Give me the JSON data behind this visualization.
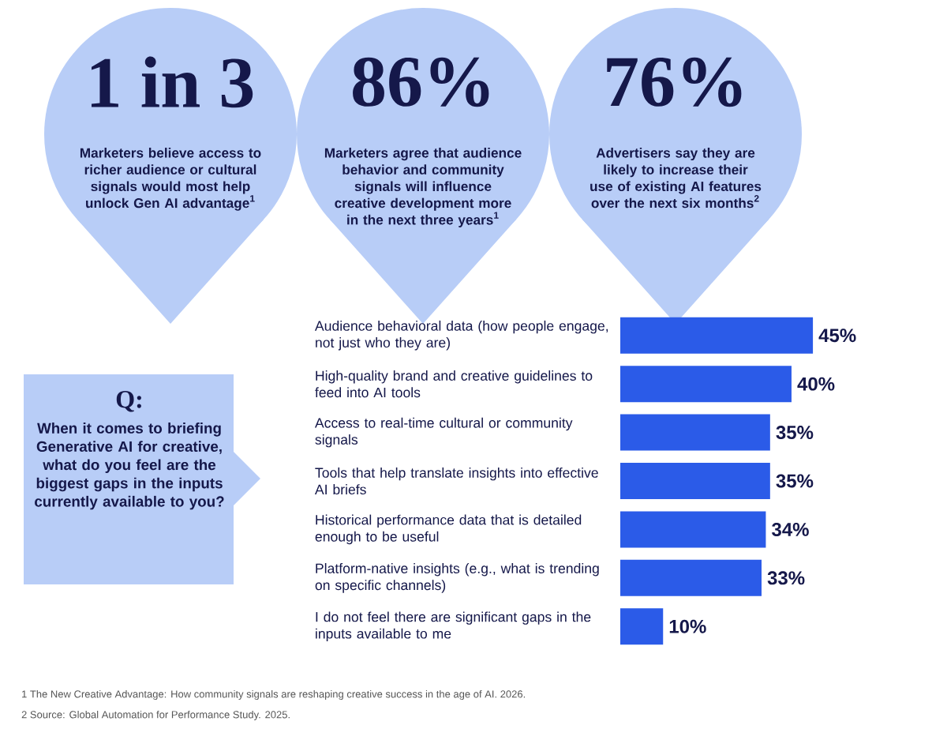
{
  "chart_data": {
    "type": "bar",
    "orientation": "horizontal",
    "categories": [
      "Audience behavioral data (how people engage, not just who they are)",
      "High-quality brand and creative guidelines to feed into AI tools",
      "Access to real-time cultural or community signals",
      "Tools that help translate insights into effective AI briefs",
      "Historical performance data that is detailed enough to be useful",
      "Platform-native insights (e.g., what is trending on specific channels)",
      "I do not feel there are significant gaps in the inputs available to me"
    ],
    "values": [
      45,
      40,
      35,
      35,
      34,
      33,
      10
    ],
    "value_labels": [
      "45%",
      "40%",
      "35%",
      "35%",
      "34%",
      "33%",
      "10%"
    ],
    "color": "#2b5be8",
    "annotations": [
      "1 in 3",
      "Marketers believe access to richer audience or cultural signals would most help unlock Gen AI advantage$^{1}$",
      "86%",
      "Marketers agree that audience behavior and community signals will influence creative development more in the next three years$^{1}$",
      "76%",
      "Advertisers say they are likely to increase their use of existing AI features over the next six months$^{2}$",
      "Q:",
      "When it comes to briefing Generative AI for creative, what do you feel are the biggest gaps in the inputs currently available to you?",
      "1  The New Creative Advantage: How community signals are reshaping creative success in the age of AI. 2026.",
      "2  Source: Global Automation for Performance Study. 2025."
    ]
  }
}
